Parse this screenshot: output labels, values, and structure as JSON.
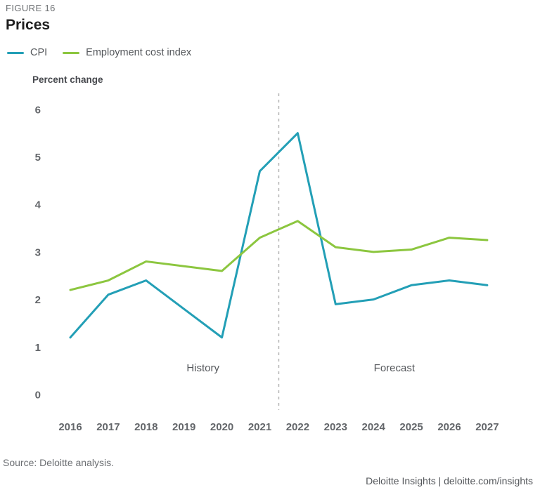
{
  "figure": {
    "eyebrow": "FIGURE 16",
    "title": "Prices"
  },
  "legend": [
    {
      "label": "CPI",
      "color": "#239fb6"
    },
    {
      "label": "Employment cost index",
      "color": "#8cc63f"
    }
  ],
  "axis_title": "Percent change",
  "annotations": {
    "history": "History",
    "forecast": "Forecast"
  },
  "source": "Source: Deloitte analysis.",
  "footer": "Deloitte Insights | deloitte.com/insights",
  "colors": {
    "cpi": "#239fb6",
    "eci": "#8cc63f",
    "divider": "#b5b5b5",
    "tick_text": "#63666a",
    "annotation_text": "#53565a"
  },
  "chart_data": {
    "type": "line",
    "title": "Prices",
    "ylabel": "Percent change",
    "xlabel": "",
    "x": [
      2016,
      2017,
      2018,
      2019,
      2020,
      2021,
      2022,
      2023,
      2024,
      2025,
      2026,
      2027
    ],
    "series": [
      {
        "name": "CPI",
        "color": "#239fb6",
        "values": [
          1.2,
          2.1,
          2.4,
          1.8,
          1.2,
          4.7,
          5.5,
          1.9,
          2.0,
          2.3,
          2.4,
          2.3
        ]
      },
      {
        "name": "Employment cost index",
        "color": "#8cc63f",
        "values": [
          2.2,
          2.4,
          2.8,
          2.7,
          2.6,
          3.3,
          3.65,
          3.1,
          3.0,
          3.05,
          3.3,
          3.25
        ]
      }
    ],
    "ylim": [
      0,
      6
    ],
    "yticks": [
      0,
      1,
      2,
      3,
      4,
      5,
      6
    ],
    "divider_x": 2021.5,
    "grid": false,
    "legend_position": "top-left",
    "history_label_x": 2019.5,
    "forecast_label_x": 2024.55
  }
}
